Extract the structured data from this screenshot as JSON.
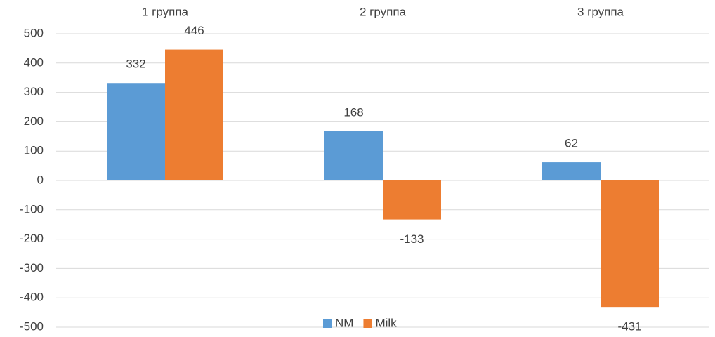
{
  "chart_data": {
    "type": "bar",
    "categories": [
      "1 группа",
      "2 группа",
      "3 группа"
    ],
    "series": [
      {
        "name": "NM",
        "color": "#5b9bd5",
        "values": [
          332,
          168,
          62
        ]
      },
      {
        "name": "Milk",
        "color": "#ed7d31",
        "values": [
          446,
          -133,
          -431
        ]
      }
    ],
    "ylim": [
      -500,
      500
    ],
    "yticks": [
      -500,
      -400,
      -300,
      -200,
      -100,
      0,
      100,
      200,
      300,
      400,
      500
    ],
    "grid": true,
    "legend": "bottom"
  }
}
